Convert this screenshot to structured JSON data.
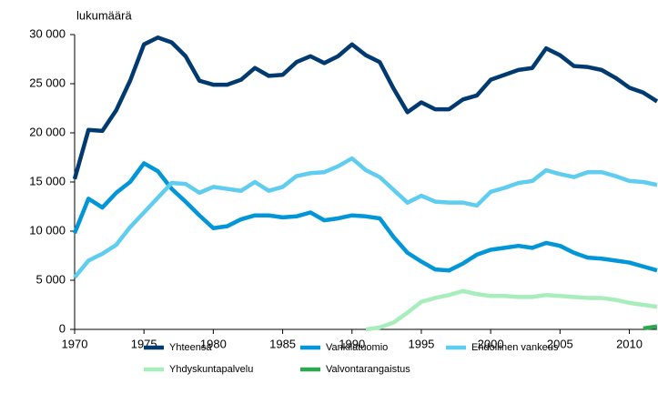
{
  "chart_data": {
    "type": "line",
    "y_label": "lukumäärä",
    "x": [
      1970,
      1971,
      1972,
      1973,
      1974,
      1975,
      1976,
      1977,
      1978,
      1979,
      1980,
      1981,
      1982,
      1983,
      1984,
      1985,
      1986,
      1987,
      1988,
      1989,
      1990,
      1991,
      1992,
      1993,
      1994,
      1995,
      1996,
      1997,
      1998,
      1999,
      2000,
      2001,
      2002,
      2003,
      2004,
      2005,
      2006,
      2007,
      2008,
      2009,
      2010,
      2011,
      2012
    ],
    "series": [
      {
        "name": "Yhteensä",
        "color": "#003a70",
        "values": [
          15300,
          20300,
          20200,
          22300,
          25300,
          29000,
          29700,
          29200,
          27800,
          25300,
          24900,
          24900,
          25400,
          26600,
          25800,
          25900,
          27200,
          27800,
          27100,
          27800,
          29000,
          27900,
          27200,
          24500,
          22100,
          23100,
          22400,
          22400,
          23400,
          23800,
          25400,
          25900,
          26400,
          26600,
          28600,
          27900,
          26800,
          26700,
          26400,
          25600,
          24600,
          24100,
          23200
        ]
      },
      {
        "name": "Vankilatuomio",
        "color": "#0096d8",
        "values": [
          9800,
          13300,
          12400,
          13900,
          15000,
          16900,
          16100,
          14300,
          13000,
          11600,
          10300,
          10500,
          11200,
          11600,
          11600,
          11400,
          11500,
          11900,
          11100,
          11300,
          11600,
          11500,
          11300,
          9400,
          7800,
          6900,
          6100,
          6000,
          6700,
          7600,
          8100,
          8300,
          8500,
          8300,
          8800,
          8500,
          7800,
          7300,
          7200,
          7000,
          6800,
          6400,
          6000
        ]
      },
      {
        "name": "Ehdollinen vankeus",
        "color": "#5fcdf0",
        "values": [
          5300,
          7000,
          7700,
          8600,
          10400,
          11900,
          13400,
          14900,
          14800,
          13900,
          14500,
          14300,
          14100,
          15000,
          14100,
          14500,
          15600,
          15900,
          16000,
          16600,
          17400,
          16200,
          15500,
          14200,
          12900,
          13600,
          13000,
          12900,
          12900,
          12600,
          14000,
          14400,
          14900,
          15100,
          16200,
          15800,
          15500,
          16000,
          16000,
          15600,
          15100,
          15000,
          14700
        ]
      },
      {
        "name": "Yhdyskuntapalvelu",
        "color": "#a8eebc",
        "values": [
          null,
          null,
          null,
          null,
          null,
          null,
          null,
          null,
          null,
          null,
          null,
          null,
          null,
          null,
          null,
          null,
          null,
          null,
          null,
          null,
          null,
          0,
          200,
          700,
          1700,
          2800,
          3200,
          3500,
          3900,
          3600,
          3400,
          3400,
          3300,
          3300,
          3500,
          3400,
          3300,
          3200,
          3200,
          3000,
          2700,
          2500,
          2300
        ]
      },
      {
        "name": "Valvontarangaistus",
        "color": "#2ea84f",
        "values": [
          null,
          null,
          null,
          null,
          null,
          null,
          null,
          null,
          null,
          null,
          null,
          null,
          null,
          null,
          null,
          null,
          null,
          null,
          null,
          null,
          null,
          null,
          null,
          null,
          null,
          null,
          null,
          null,
          null,
          null,
          null,
          null,
          null,
          null,
          null,
          null,
          null,
          null,
          null,
          null,
          null,
          100,
          300
        ]
      }
    ],
    "xlim": [
      1970,
      2012
    ],
    "xticks": [
      1970,
      1975,
      1980,
      1985,
      1990,
      1995,
      2000,
      2005,
      2010
    ],
    "ylim": [
      0,
      30000
    ],
    "yticks": [
      0,
      {
        "value": 5000,
        "label": "5 000"
      },
      {
        "value": 10000,
        "label": "10 000"
      },
      {
        "value": 15000,
        "label": "15 000"
      },
      {
        "value": 20000,
        "label": "20 000"
      },
      {
        "value": 25000,
        "label": "25 000"
      },
      {
        "value": 30000,
        "label": "30 000"
      }
    ],
    "grid": false
  }
}
